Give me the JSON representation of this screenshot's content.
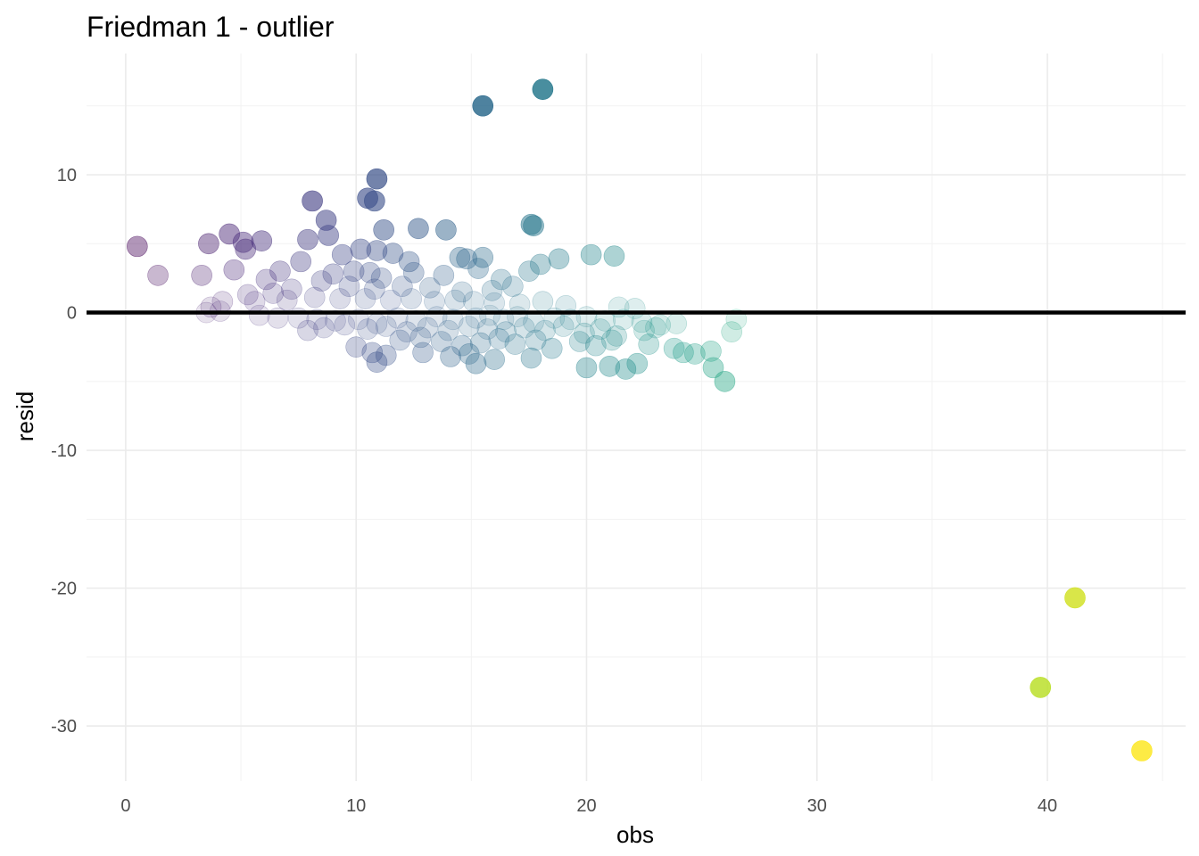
{
  "chart_data": {
    "type": "scatter",
    "title": "Friedman 1 - outlier",
    "xlabel": "obs",
    "ylabel": "resid",
    "xlim": [
      -1.7,
      46.0
    ],
    "ylim": [
      -34.0,
      18.8
    ],
    "x_ticks": [
      0,
      10,
      20,
      30,
      40
    ],
    "x_tick_labels": [
      "0",
      "10",
      "20",
      "30",
      "40"
    ],
    "y_ticks": [
      -30,
      -20,
      -10,
      0,
      10
    ],
    "y_tick_labels": [
      "-30",
      "-20",
      "-10",
      "0",
      "10"
    ],
    "x_minor": [
      5,
      15,
      25,
      35,
      45
    ],
    "y_minor": [
      -25,
      -15,
      -5,
      5,
      15
    ],
    "grid": true,
    "hline_y": 0,
    "color_scale": "viridis",
    "legend": "none",
    "points": [
      {
        "x": 0.5,
        "y": 4.8
      },
      {
        "x": 1.4,
        "y": 2.7
      },
      {
        "x": 3.3,
        "y": 2.7
      },
      {
        "x": 3.6,
        "y": 5.0
      },
      {
        "x": 4.5,
        "y": 5.7
      },
      {
        "x": 4.7,
        "y": 3.1
      },
      {
        "x": 5.1,
        "y": 5.1
      },
      {
        "x": 5.2,
        "y": 4.6
      },
      {
        "x": 5.9,
        "y": 5.2
      },
      {
        "x": 8.1,
        "y": 8.1
      },
      {
        "x": 8.7,
        "y": 6.7
      },
      {
        "x": 7.9,
        "y": 5.3
      },
      {
        "x": 10.5,
        "y": 8.3
      },
      {
        "x": 10.8,
        "y": 8.1
      },
      {
        "x": 10.9,
        "y": 9.7
      },
      {
        "x": 11.2,
        "y": 6.0
      },
      {
        "x": 12.7,
        "y": 6.1
      },
      {
        "x": 13.9,
        "y": 6.0
      },
      {
        "x": 15.5,
        "y": 15.0
      },
      {
        "x": 18.1,
        "y": 16.2
      },
      {
        "x": 17.6,
        "y": 6.4
      },
      {
        "x": 17.7,
        "y": 6.3
      },
      {
        "x": 20.2,
        "y": 4.2
      },
      {
        "x": 21.2,
        "y": 4.1
      },
      {
        "x": 18.8,
        "y": 3.9
      },
      {
        "x": 18.0,
        "y": 3.5
      },
      {
        "x": 17.5,
        "y": 3.0
      },
      {
        "x": 15.5,
        "y": 4.0
      },
      {
        "x": 14.5,
        "y": 4.0
      },
      {
        "x": 12.3,
        "y": 3.7
      },
      {
        "x": 11.6,
        "y": 4.3
      },
      {
        "x": 10.9,
        "y": 4.5
      },
      {
        "x": 10.2,
        "y": 4.6
      },
      {
        "x": 9.4,
        "y": 4.2
      },
      {
        "x": 8.8,
        "y": 5.6
      },
      {
        "x": 7.6,
        "y": 3.7
      },
      {
        "x": 6.7,
        "y": 3.0
      },
      {
        "x": 6.1,
        "y": 2.4
      },
      {
        "x": 9.0,
        "y": 2.8
      },
      {
        "x": 9.9,
        "y": 3.0
      },
      {
        "x": 10.6,
        "y": 2.9
      },
      {
        "x": 11.1,
        "y": 2.5
      },
      {
        "x": 12.5,
        "y": 2.9
      },
      {
        "x": 13.8,
        "y": 2.7
      },
      {
        "x": 14.8,
        "y": 3.9
      },
      {
        "x": 15.3,
        "y": 3.2
      },
      {
        "x": 16.3,
        "y": 2.4
      },
      {
        "x": 16.8,
        "y": 1.9
      },
      {
        "x": 15.9,
        "y": 1.6
      },
      {
        "x": 14.6,
        "y": 1.5
      },
      {
        "x": 13.2,
        "y": 1.8
      },
      {
        "x": 12.0,
        "y": 1.9
      },
      {
        "x": 10.8,
        "y": 1.7
      },
      {
        "x": 9.7,
        "y": 1.9
      },
      {
        "x": 8.5,
        "y": 2.3
      },
      {
        "x": 7.2,
        "y": 1.7
      },
      {
        "x": 6.4,
        "y": 1.4
      },
      {
        "x": 5.3,
        "y": 1.3
      },
      {
        "x": 4.2,
        "y": 0.8
      },
      {
        "x": 3.7,
        "y": 0.4
      },
      {
        "x": 5.6,
        "y": 0.8
      },
      {
        "x": 7.0,
        "y": 0.9
      },
      {
        "x": 8.2,
        "y": 1.1
      },
      {
        "x": 9.3,
        "y": 1.0
      },
      {
        "x": 10.4,
        "y": 1.0
      },
      {
        "x": 11.5,
        "y": 0.9
      },
      {
        "x": 12.4,
        "y": 1.0
      },
      {
        "x": 13.4,
        "y": 0.8
      },
      {
        "x": 14.3,
        "y": 0.9
      },
      {
        "x": 15.1,
        "y": 0.8
      },
      {
        "x": 16.0,
        "y": 0.7
      },
      {
        "x": 17.1,
        "y": 0.6
      },
      {
        "x": 18.1,
        "y": 0.8
      },
      {
        "x": 19.1,
        "y": 0.5
      },
      {
        "x": 21.4,
        "y": 0.4
      },
      {
        "x": 22.1,
        "y": 0.3
      },
      {
        "x": 3.5,
        "y": 0.0
      },
      {
        "x": 4.1,
        "y": 0.1
      },
      {
        "x": 5.8,
        "y": -0.2
      },
      {
        "x": 6.6,
        "y": -0.4
      },
      {
        "x": 7.5,
        "y": -0.4
      },
      {
        "x": 8.3,
        "y": -0.5
      },
      {
        "x": 9.1,
        "y": -0.6
      },
      {
        "x": 10.1,
        "y": -0.5
      },
      {
        "x": 10.9,
        "y": -0.8
      },
      {
        "x": 11.8,
        "y": -0.4
      },
      {
        "x": 12.6,
        "y": -0.6
      },
      {
        "x": 13.5,
        "y": -0.3
      },
      {
        "x": 14.2,
        "y": -0.5
      },
      {
        "x": 15.2,
        "y": -0.4
      },
      {
        "x": 15.8,
        "y": -0.2
      },
      {
        "x": 16.4,
        "y": -0.5
      },
      {
        "x": 17.0,
        "y": -0.3
      },
      {
        "x": 17.7,
        "y": -0.7
      },
      {
        "x": 18.6,
        "y": -0.4
      },
      {
        "x": 19.3,
        "y": -0.5
      },
      {
        "x": 20.0,
        "y": -0.3
      },
      {
        "x": 20.8,
        "y": -0.6
      },
      {
        "x": 21.6,
        "y": -0.5
      },
      {
        "x": 22.4,
        "y": -0.7
      },
      {
        "x": 23.2,
        "y": -0.9
      },
      {
        "x": 23.9,
        "y": -0.8
      },
      {
        "x": 26.5,
        "y": -0.5
      },
      {
        "x": 7.9,
        "y": -1.3
      },
      {
        "x": 8.6,
        "y": -1.1
      },
      {
        "x": 9.5,
        "y": -0.9
      },
      {
        "x": 10.5,
        "y": -1.2
      },
      {
        "x": 11.3,
        "y": -1.0
      },
      {
        "x": 12.2,
        "y": -1.4
      },
      {
        "x": 13.1,
        "y": -1.1
      },
      {
        "x": 14.0,
        "y": -1.3
      },
      {
        "x": 14.9,
        "y": -1.0
      },
      {
        "x": 15.7,
        "y": -1.2
      },
      {
        "x": 16.5,
        "y": -1.4
      },
      {
        "x": 17.3,
        "y": -1.1
      },
      {
        "x": 18.2,
        "y": -1.3
      },
      {
        "x": 19.0,
        "y": -1.0
      },
      {
        "x": 19.9,
        "y": -1.5
      },
      {
        "x": 20.6,
        "y": -1.2
      },
      {
        "x": 21.3,
        "y": -1.7
      },
      {
        "x": 22.5,
        "y": -1.3
      },
      {
        "x": 23.0,
        "y": -1.1
      },
      {
        "x": 26.3,
        "y": -1.4
      },
      {
        "x": 10.0,
        "y": -2.5
      },
      {
        "x": 11.9,
        "y": -2.0
      },
      {
        "x": 12.8,
        "y": -1.8
      },
      {
        "x": 13.7,
        "y": -2.1
      },
      {
        "x": 14.6,
        "y": -2.4
      },
      {
        "x": 15.4,
        "y": -2.2
      },
      {
        "x": 16.2,
        "y": -1.9
      },
      {
        "x": 16.9,
        "y": -2.3
      },
      {
        "x": 17.8,
        "y": -2.0
      },
      {
        "x": 18.5,
        "y": -2.6
      },
      {
        "x": 19.7,
        "y": -2.1
      },
      {
        "x": 20.4,
        "y": -2.4
      },
      {
        "x": 21.1,
        "y": -2.0
      },
      {
        "x": 22.7,
        "y": -2.3
      },
      {
        "x": 23.8,
        "y": -2.6
      },
      {
        "x": 24.2,
        "y": -2.9
      },
      {
        "x": 24.7,
        "y": -3.0
      },
      {
        "x": 25.4,
        "y": -2.8
      },
      {
        "x": 10.7,
        "y": -2.9
      },
      {
        "x": 11.3,
        "y": -3.1
      },
      {
        "x": 12.9,
        "y": -2.9
      },
      {
        "x": 14.1,
        "y": -3.2
      },
      {
        "x": 14.9,
        "y": -3.0
      },
      {
        "x": 16.0,
        "y": -3.4
      },
      {
        "x": 17.6,
        "y": -3.3
      },
      {
        "x": 10.9,
        "y": -3.6
      },
      {
        "x": 15.2,
        "y": -3.7
      },
      {
        "x": 20.0,
        "y": -4.0
      },
      {
        "x": 21.0,
        "y": -3.9
      },
      {
        "x": 21.7,
        "y": -4.1
      },
      {
        "x": 22.2,
        "y": -3.7
      },
      {
        "x": 25.5,
        "y": -4.0
      },
      {
        "x": 26.0,
        "y": -5.0
      },
      {
        "x": 39.7,
        "y": -27.2
      },
      {
        "x": 41.2,
        "y": -20.7
      },
      {
        "x": 44.1,
        "y": -31.8
      }
    ]
  }
}
